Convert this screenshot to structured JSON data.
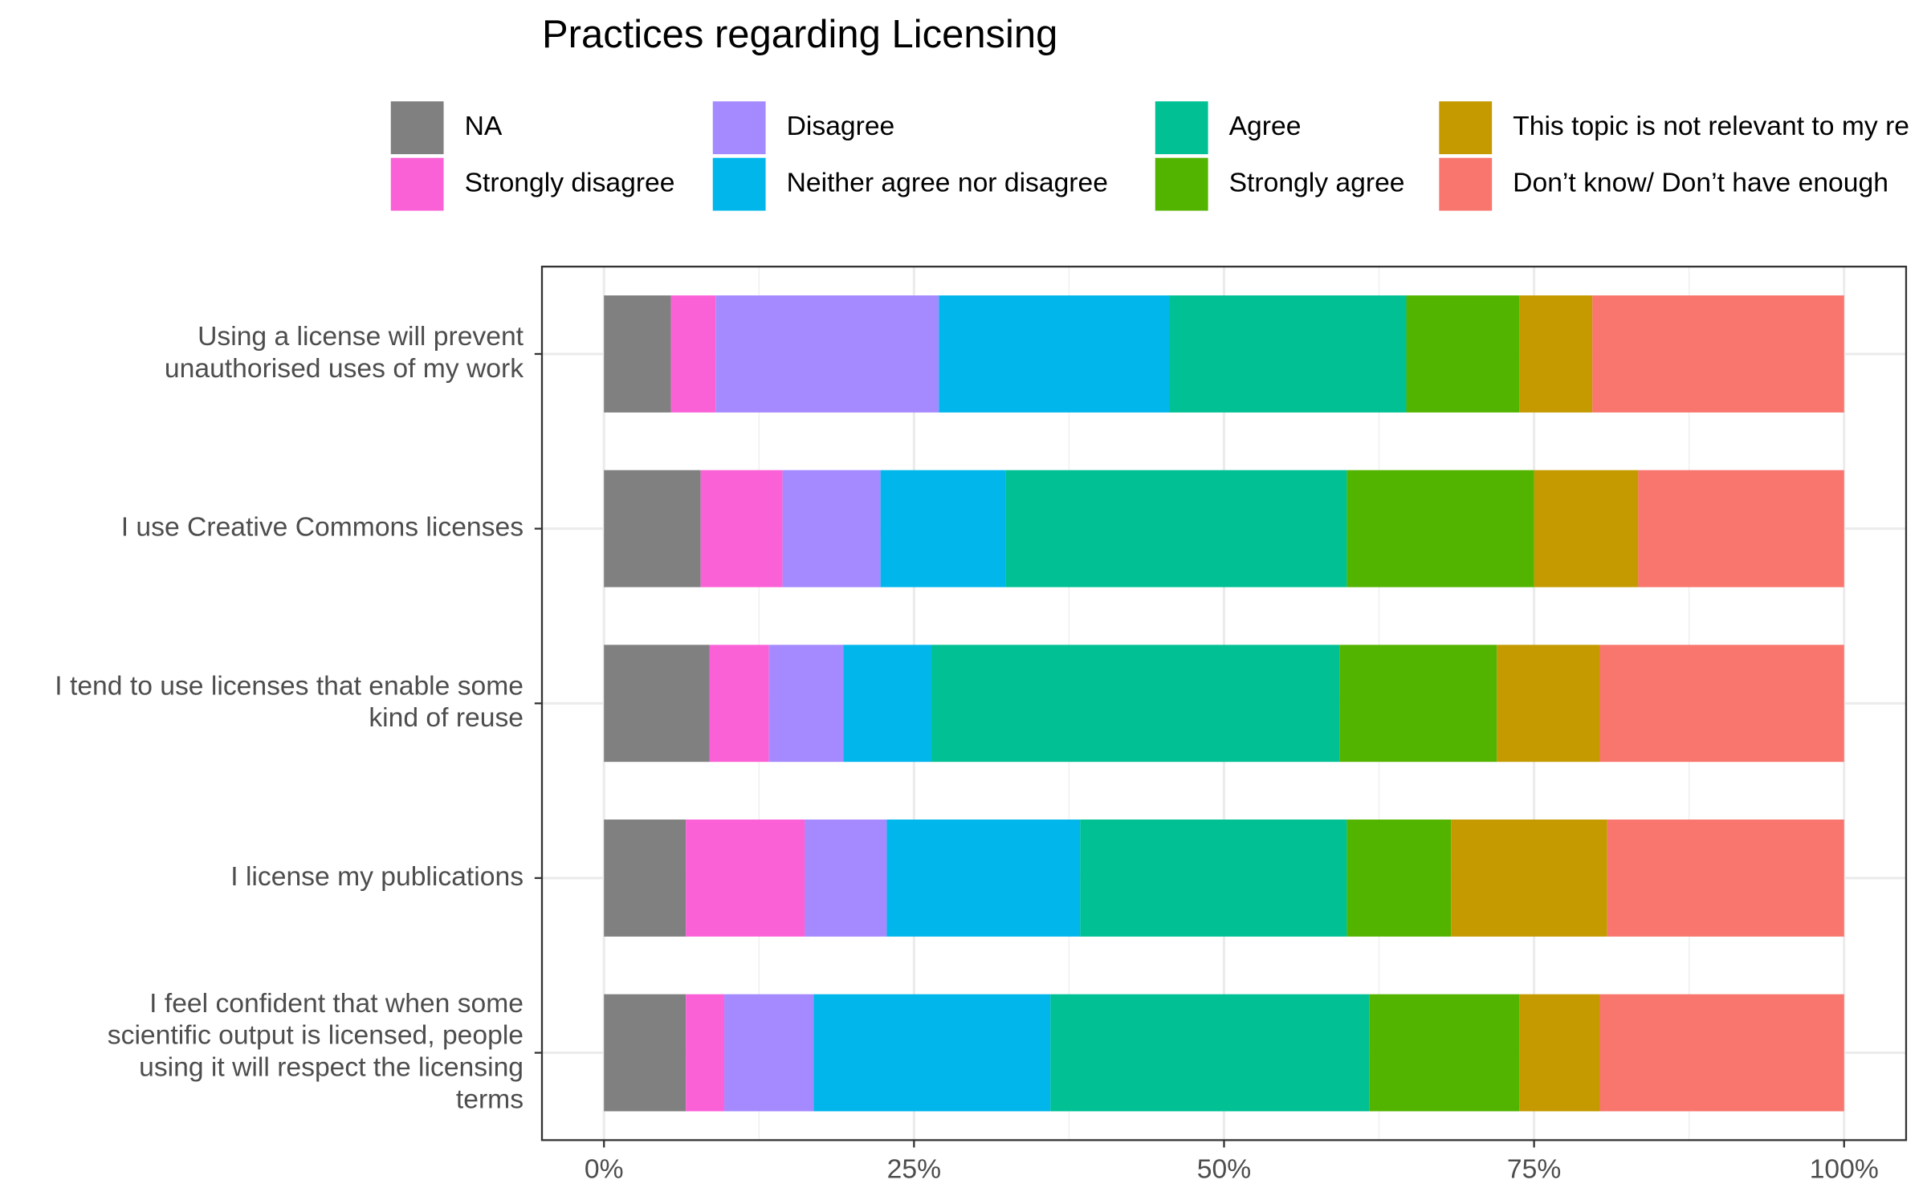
{
  "chart_data": {
    "type": "stacked-bar-horizontal",
    "title": "Practices regarding Licensing",
    "categories": [
      "Using a license will prevent\nunauthorised uses of my work",
      "I use Creative Commons licenses",
      "I tend to use licenses that enable some\nkind of reuse",
      "I license my publications",
      "I feel confident that when some\nscientific output is licensed, people\nusing it will respect the licensing\nterms"
    ],
    "series": [
      {
        "name": "NA",
        "color": "#808080",
        "values": [
          5.4,
          7.8,
          8.5,
          6.6,
          6.6
        ]
      },
      {
        "name": "Strongly disagree",
        "color": "#fb61d7",
        "values": [
          3.6,
          6.6,
          4.8,
          9.6,
          3.1
        ]
      },
      {
        "name": "Disagree",
        "color": "#a58aff",
        "values": [
          18.0,
          7.9,
          6.0,
          6.6,
          7.2
        ]
      },
      {
        "name": "Neither agree nor disagree",
        "color": "#00b6eb",
        "values": [
          18.6,
          10.1,
          7.1,
          15.6,
          19.1
        ]
      },
      {
        "name": "Agree",
        "color": "#00c094",
        "values": [
          19.1,
          27.5,
          32.9,
          21.5,
          25.7
        ]
      },
      {
        "name": "Strongly agree",
        "color": "#53b400",
        "values": [
          9.1,
          15.1,
          12.7,
          8.4,
          12.1
        ]
      },
      {
        "name": "This topic is not relevant to my re",
        "color": "#c49a00",
        "values": [
          5.9,
          8.4,
          8.3,
          12.6,
          6.5
        ]
      },
      {
        "name": "Don’t know/ Don’t have enough",
        "color": "#f8766d",
        "values": [
          20.3,
          16.6,
          19.7,
          19.1,
          19.7
        ]
      }
    ],
    "xlim": [
      -5,
      105
    ],
    "xticks": [
      {
        "value": 0,
        "label": "0%"
      },
      {
        "value": 25,
        "label": "25%"
      },
      {
        "value": 50,
        "label": "50%"
      },
      {
        "value": 75,
        "label": "75%"
      },
      {
        "value": 100,
        "label": "100%"
      }
    ],
    "grid": true
  }
}
